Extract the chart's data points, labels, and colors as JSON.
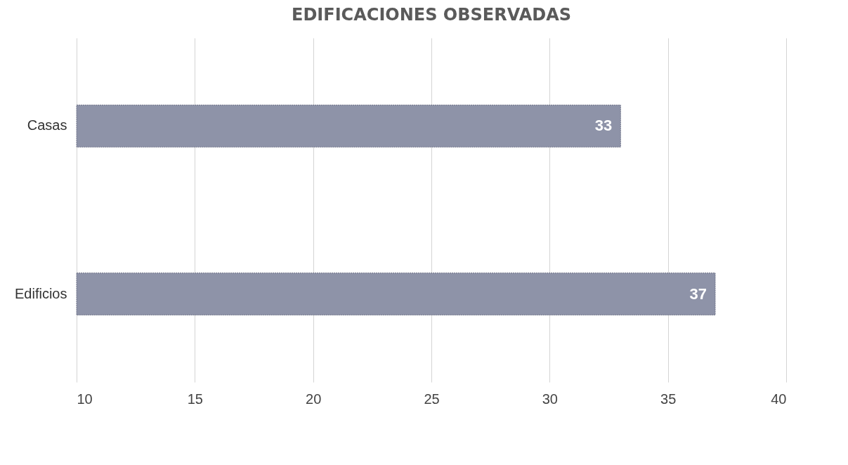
{
  "chart_data": {
    "type": "bar",
    "orientation": "horizontal",
    "title": "EDIFICACIONES OBSERVADAS",
    "categories": [
      "Casas",
      "Edificios"
    ],
    "values": [
      33,
      37
    ],
    "color": "#8e93a8",
    "xlim": [
      10,
      40
    ],
    "xticks": [
      10,
      15,
      20,
      25,
      30,
      35,
      40
    ],
    "grid": "x",
    "data_labels": true
  }
}
